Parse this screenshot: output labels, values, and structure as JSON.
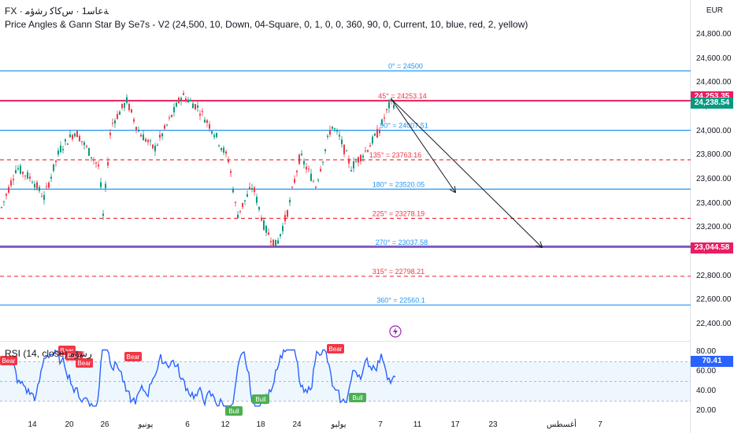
{
  "header": {
    "line1": "FX · ﺔﻋﺎﺳ1 · ﺱﻛﺎﻛ ﺭﺷﺅﻣ",
    "line2": "Price Angles & Gann Star By Se7s - V2 (24,500, 10, Down, 04-Square, 0, 1, 0, 0, 360, 90, 0, Current, 10, blue, red, 2, yellow)"
  },
  "currency": "EUR",
  "price_axis": {
    "ticks": [
      "24,800.00",
      "24,600.00",
      "24,400.00",
      "24,200.00",
      "24,000.00",
      "23,800.00",
      "23,600.00",
      "23,400.00",
      "23,200.00",
      "23,000.00",
      "22,800.00",
      "22,600.00",
      "22,400.00"
    ]
  },
  "price_tags": [
    {
      "label": "24,253.35",
      "color": "#e91e63"
    },
    {
      "label": "24,238.54",
      "color": "#089981"
    },
    {
      "label": "23,044.58",
      "color": "#e91e63"
    }
  ],
  "gann_levels": [
    {
      "label": "0° = 24500",
      "price": 24500,
      "color": "#2196f3",
      "style": "solid"
    },
    {
      "label": "45° = 24253.14",
      "price": 24253.14,
      "color": "#f23645",
      "style": "solid"
    },
    {
      "label": "90° = 24007.51",
      "price": 24007.51,
      "color": "#2196f3",
      "style": "solid"
    },
    {
      "label": "135° = 23763.16",
      "price": 23763.16,
      "color": "#f23645",
      "style": "dashed"
    },
    {
      "label": "180° = 23520.05",
      "price": 23520.05,
      "color": "#2196f3",
      "style": "solid"
    },
    {
      "label": "225° = 23278.19",
      "price": 23278.19,
      "color": "#f23645",
      "style": "dashed"
    },
    {
      "label": "270° = 23037.58",
      "price": 23037.58,
      "color": "#2196f3",
      "style": "solid"
    },
    {
      "label": "315° = 22798.21",
      "price": 22798.21,
      "color": "#f23645",
      "style": "dashed"
    },
    {
      "label": "360° = 22560.1",
      "price": 22560.1,
      "color": "#2196f3",
      "style": "solid"
    }
  ],
  "rsi": {
    "title": "RSI (14, close) ﺭﺷﺅﻣ",
    "value_tag": "70.41",
    "ticks": [
      "80.00",
      "60.00",
      "40.00",
      "20.00"
    ],
    "labels": {
      "bear": "Bear",
      "bull": "Bull"
    }
  },
  "date_axis": {
    "ticks": [
      "14",
      "20",
      "26",
      "يونيو",
      "6",
      "12",
      "18",
      "24",
      "يوليو",
      "7",
      "11",
      "17",
      "23",
      "أغسطس",
      "7"
    ]
  }
}
